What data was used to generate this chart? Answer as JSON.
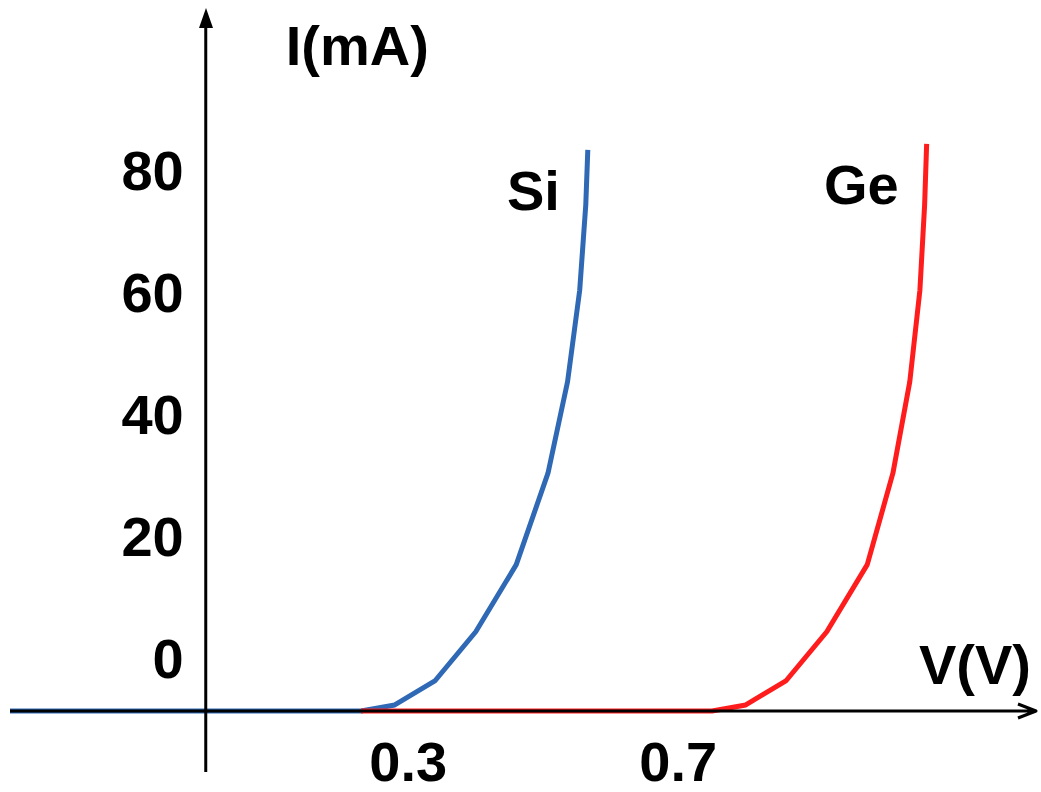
{
  "chart_data": {
    "type": "line",
    "xlabel": "V(V)",
    "ylabel": "I(mA)",
    "xlim": [
      -0.29,
      1.23
    ],
    "ylim": [
      -18,
      104
    ],
    "xticks": [
      0.3,
      0.7
    ],
    "yticks": [
      0,
      20,
      40,
      60,
      80
    ],
    "series": [
      {
        "name": "Si",
        "color": "#2f68b4",
        "x": [
          -0.29,
          0.23,
          0.28,
          0.34,
          0.4,
          0.46,
          0.507,
          0.536,
          0.554,
          0.563,
          0.566
        ],
        "values": [
          -8,
          -8,
          -7,
          -3,
          5,
          16,
          31,
          46,
          61,
          75,
          84
        ]
      },
      {
        "name": "Ge",
        "color": "#ff1c1c",
        "x": [
          0.23,
          0.75,
          0.8,
          0.86,
          0.92,
          0.98,
          1.018,
          1.043,
          1.058,
          1.065,
          1.068
        ],
        "values": [
          -8,
          -8,
          -7,
          -3,
          5,
          16,
          31,
          46,
          61,
          75,
          85
        ]
      }
    ]
  }
}
